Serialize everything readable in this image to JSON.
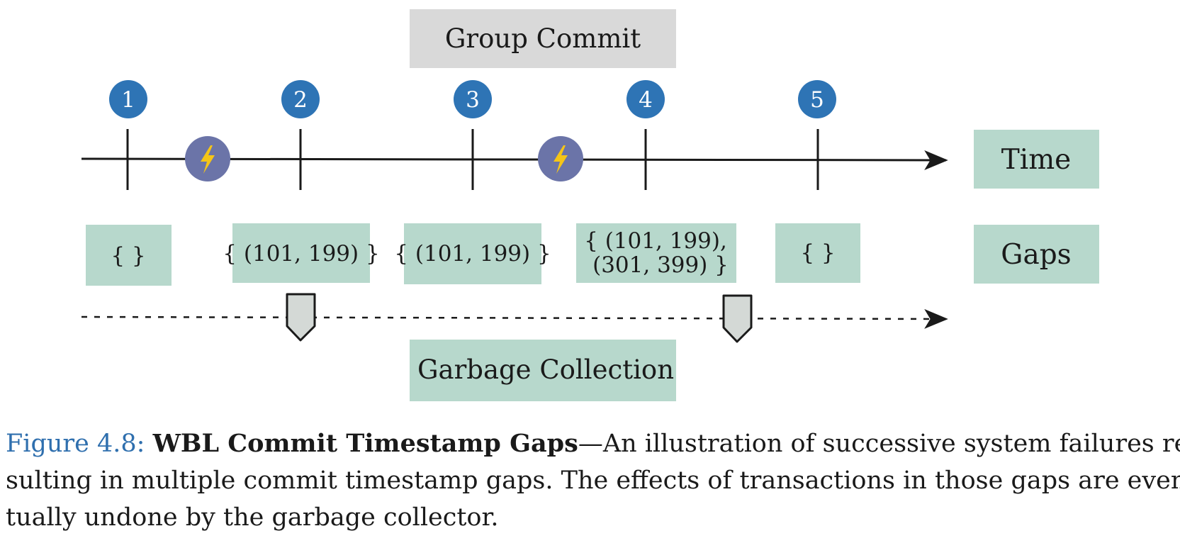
{
  "diagram": {
    "group_commit_label": "Group Commit",
    "time_label": "Time",
    "gaps_label": "Gaps",
    "garbage_collection_label": "Garbage Collection",
    "checkpoints": [
      "1",
      "2",
      "3",
      "4",
      "5"
    ],
    "gap_sets": [
      [
        "{ }"
      ],
      [
        "{ (101, 199) }"
      ],
      [
        "{ (101, 199) }"
      ],
      [
        "{ (101, 199),",
        "(301, 399) }"
      ],
      [
        "{ }"
      ]
    ],
    "failure_icon": "lightning-bolt-icon",
    "gc_marker_icon": "pentagon-marker-icon",
    "colors": {
      "checkpoint": "#2e74b5",
      "failure": "#6b74a8",
      "bolt": "#f5c518",
      "green_box": "#b7d8cc",
      "gray_box": "#d9d9d9",
      "gc_marker": "#d4d9d6",
      "caption_label": "#2f6fae"
    }
  },
  "caption": {
    "label": "Figure 4.8:",
    "title": "WBL Commit Timestamp Gaps",
    "line1": "—An illustration of successive system failures re-",
    "line2": "sulting in multiple commit timestamp gaps. The effects of transactions in those gaps are even-",
    "line3": "tually undone by the garbage collector."
  }
}
